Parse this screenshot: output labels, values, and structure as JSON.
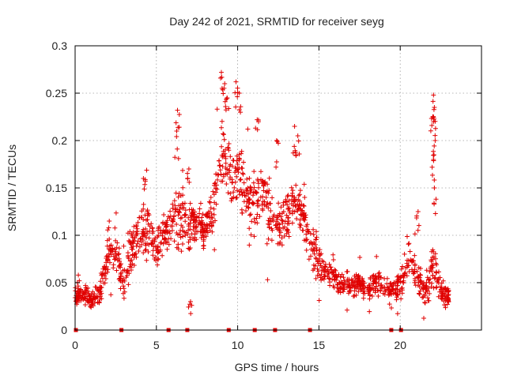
{
  "chart_data": {
    "type": "scatter",
    "title": "Day 242 of 2021, SRMTID for receiver seyg",
    "xlabel": "GPS time / hours",
    "ylabel": "SRMTID / TECUs",
    "xlim": [
      0,
      25
    ],
    "ylim": [
      0,
      0.3
    ],
    "xticks": [
      0,
      5,
      10,
      15,
      20
    ],
    "xtick_labels": [
      "0",
      "5",
      "10",
      "15",
      "20"
    ],
    "yticks": [
      0,
      0.05,
      0.1,
      0.15,
      0.2,
      0.25,
      0.3
    ],
    "ytick_labels": [
      "0",
      "0.05",
      "0.1",
      "0.15",
      "0.2",
      "0.25",
      "0.3"
    ],
    "grid": true,
    "marker": "+",
    "color": "#e00000",
    "series": [
      {
        "name": "SRMTID",
        "envelope": [
          [
            0.0,
            0.03,
            0.045
          ],
          [
            0.5,
            0.03,
            0.045
          ],
          [
            1.0,
            0.025,
            0.04
          ],
          [
            1.5,
            0.03,
            0.045
          ],
          [
            2.0,
            0.06,
            0.09
          ],
          [
            2.5,
            0.07,
            0.1
          ],
          [
            3.0,
            0.035,
            0.06
          ],
          [
            3.5,
            0.07,
            0.11
          ],
          [
            4.0,
            0.08,
            0.12
          ],
          [
            4.5,
            0.085,
            0.13
          ],
          [
            5.0,
            0.07,
            0.1
          ],
          [
            5.5,
            0.09,
            0.12
          ],
          [
            6.0,
            0.1,
            0.14
          ],
          [
            6.5,
            0.09,
            0.14
          ],
          [
            7.0,
            0.09,
            0.13
          ],
          [
            7.5,
            0.1,
            0.13
          ],
          [
            8.0,
            0.09,
            0.12
          ],
          [
            8.5,
            0.11,
            0.15
          ],
          [
            9.0,
            0.16,
            0.22
          ],
          [
            9.5,
            0.15,
            0.2
          ],
          [
            10.0,
            0.14,
            0.2
          ],
          [
            10.5,
            0.12,
            0.16
          ],
          [
            11.0,
            0.11,
            0.16
          ],
          [
            11.5,
            0.13,
            0.17
          ],
          [
            12.0,
            0.1,
            0.15
          ],
          [
            12.5,
            0.08,
            0.13
          ],
          [
            13.0,
            0.1,
            0.14
          ],
          [
            13.5,
            0.12,
            0.15
          ],
          [
            14.0,
            0.11,
            0.14
          ],
          [
            14.5,
            0.07,
            0.11
          ],
          [
            15.0,
            0.05,
            0.08
          ],
          [
            15.5,
            0.05,
            0.07
          ],
          [
            16.0,
            0.045,
            0.065
          ],
          [
            16.5,
            0.04,
            0.06
          ],
          [
            17.0,
            0.035,
            0.055
          ],
          [
            17.5,
            0.04,
            0.06
          ],
          [
            18.0,
            0.035,
            0.055
          ],
          [
            18.5,
            0.04,
            0.06
          ],
          [
            19.0,
            0.035,
            0.055
          ],
          [
            19.5,
            0.035,
            0.05
          ],
          [
            20.0,
            0.035,
            0.055
          ],
          [
            20.5,
            0.06,
            0.1
          ],
          [
            21.0,
            0.05,
            0.07
          ],
          [
            21.5,
            0.03,
            0.05
          ],
          [
            22.0,
            0.04,
            0.09
          ],
          [
            22.5,
            0.03,
            0.05
          ],
          [
            23.0,
            0.025,
            0.04
          ]
        ],
        "spikes": [
          [
            9.0,
            0.272
          ],
          [
            9.2,
            0.26
          ],
          [
            9.35,
            0.245
          ],
          [
            9.9,
            0.262
          ],
          [
            10.1,
            0.25
          ],
          [
            6.3,
            0.232
          ],
          [
            6.25,
            0.21
          ],
          [
            11.2,
            0.222
          ],
          [
            13.5,
            0.215
          ],
          [
            13.7,
            0.205
          ],
          [
            12.4,
            0.2
          ],
          [
            22.05,
            0.248
          ],
          [
            22.1,
            0.235
          ],
          [
            22.0,
            0.225
          ],
          [
            22.15,
            0.2
          ],
          [
            22.05,
            0.18
          ],
          [
            22.1,
            0.15
          ],
          [
            4.2,
            0.16
          ],
          [
            7.0,
            0.17
          ],
          [
            21.1,
            0.125
          ],
          [
            2.1,
            0.115
          ],
          [
            1.6,
            0.06
          ],
          [
            0.2,
            0.058
          ],
          [
            7.1,
            0.03
          ]
        ],
        "zero_points": [
          0.05,
          2.85,
          5.75,
          6.9,
          9.45,
          11.05,
          12.3,
          14.45,
          19.45,
          20.05
        ]
      }
    ]
  }
}
